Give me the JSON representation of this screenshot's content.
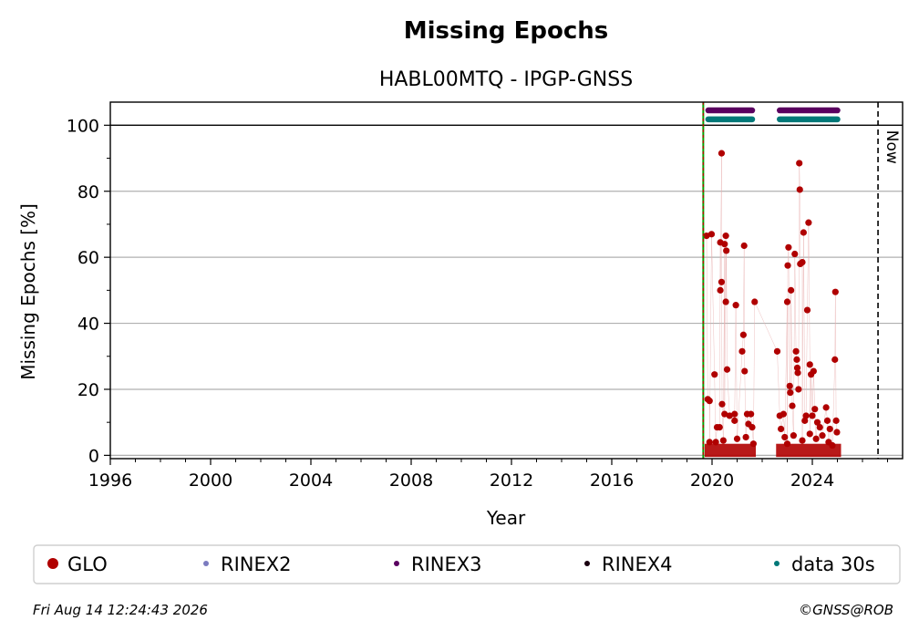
{
  "chart_data": {
    "type": "scatter",
    "title": "Missing Epochs",
    "subtitle": "HABL00MTQ - IPGP-GNSS",
    "xlabel": "Year",
    "ylabel": "Missing Epochs [%]",
    "xlim": [
      1996.0,
      2027.6
    ],
    "ylim": [
      -1.0,
      107.0
    ],
    "xticks": [
      1996,
      2000,
      2004,
      2008,
      2012,
      2016,
      2020,
      2024
    ],
    "yticks": [
      0,
      20,
      40,
      60,
      80,
      100
    ],
    "grid": "horizontal",
    "reference_line_y": 100,
    "start_line_x": 2019.65,
    "now_line": {
      "x": 2026.62,
      "label": "Now"
    },
    "series": [
      {
        "name": "GLO",
        "color": "#b00000",
        "points": [
          [
            2019.78,
            66.5
          ],
          [
            2019.83,
            17.0
          ],
          [
            2019.9,
            16.5
          ],
          [
            2019.98,
            67.0
          ],
          [
            2020.1,
            24.5
          ],
          [
            2020.2,
            8.5
          ],
          [
            2020.3,
            8.5
          ],
          [
            2020.38,
            91.5
          ],
          [
            2020.33,
            64.5
          ],
          [
            2020.5,
            64.0
          ],
          [
            2020.55,
            66.5
          ],
          [
            2020.57,
            62.0
          ],
          [
            2020.38,
            52.5
          ],
          [
            2020.33,
            50.0
          ],
          [
            2020.55,
            46.5
          ],
          [
            2020.4,
            15.5
          ],
          [
            2020.5,
            12.5
          ],
          [
            2020.6,
            26.0
          ],
          [
            2020.7,
            12.0
          ],
          [
            2020.95,
            45.5
          ],
          [
            2020.9,
            10.5
          ],
          [
            2020.9,
            12.5
          ],
          [
            2021.2,
            31.5
          ],
          [
            2021.25,
            36.5
          ],
          [
            2021.28,
            63.5
          ],
          [
            2021.3,
            25.5
          ],
          [
            2021.4,
            12.5
          ],
          [
            2021.45,
            9.5
          ],
          [
            2021.55,
            12.5
          ],
          [
            2021.6,
            8.5
          ],
          [
            2021.7,
            46.5
          ],
          [
            2019.9,
            4.0
          ],
          [
            2020.15,
            4.0
          ],
          [
            2020.45,
            4.5
          ],
          [
            2021.0,
            5.0
          ],
          [
            2021.35,
            5.5
          ],
          [
            2021.65,
            3.5
          ],
          [
            2022.6,
            31.5
          ],
          [
            2022.7,
            12.0
          ],
          [
            2022.75,
            8.0
          ],
          [
            2022.85,
            12.5
          ],
          [
            2023.0,
            46.5
          ],
          [
            2023.02,
            57.5
          ],
          [
            2023.05,
            63.0
          ],
          [
            2023.1,
            21.0
          ],
          [
            2023.12,
            19.0
          ],
          [
            2023.15,
            50.0
          ],
          [
            2023.2,
            15.0
          ],
          [
            2023.3,
            61.0
          ],
          [
            2023.35,
            31.5
          ],
          [
            2023.38,
            29.0
          ],
          [
            2023.4,
            26.5
          ],
          [
            2023.42,
            25.0
          ],
          [
            2023.45,
            20.0
          ],
          [
            2023.48,
            88.5
          ],
          [
            2023.5,
            80.5
          ],
          [
            2023.52,
            58.0
          ],
          [
            2023.6,
            58.5
          ],
          [
            2023.65,
            67.5
          ],
          [
            2023.7,
            10.5
          ],
          [
            2023.75,
            12.0
          ],
          [
            2023.8,
            44.0
          ],
          [
            2023.85,
            70.5
          ],
          [
            2023.9,
            27.5
          ],
          [
            2023.95,
            24.5
          ],
          [
            2024.0,
            12.0
          ],
          [
            2024.05,
            25.5
          ],
          [
            2024.1,
            14.0
          ],
          [
            2024.2,
            10.0
          ],
          [
            2024.3,
            8.5
          ],
          [
            2024.55,
            14.5
          ],
          [
            2024.6,
            10.5
          ],
          [
            2024.7,
            8.0
          ],
          [
            2024.9,
            29.0
          ],
          [
            2024.92,
            49.5
          ],
          [
            2024.95,
            10.5
          ],
          [
            2024.98,
            7.0
          ],
          [
            2022.9,
            5.5
          ],
          [
            2023.0,
            3.5
          ],
          [
            2023.25,
            6.0
          ],
          [
            2023.6,
            4.5
          ],
          [
            2023.9,
            6.5
          ],
          [
            2024.15,
            5.0
          ],
          [
            2024.4,
            6.0
          ],
          [
            2024.65,
            4.0
          ],
          [
            2024.8,
            3.0
          ]
        ]
      },
      {
        "name": "RINEX2",
        "color": "#7b7bbf",
        "points": []
      },
      {
        "name": "RINEX3",
        "color": "#5a0060",
        "band_y": 104.5,
        "ranges": [
          [
            2019.85,
            2021.6
          ],
          [
            2022.7,
            2025.0
          ]
        ]
      },
      {
        "name": "RINEX4",
        "color": "#1a0010",
        "points": []
      },
      {
        "name": "data 30s",
        "color": "#007878",
        "band_y": 101.8,
        "ranges": [
          [
            2019.85,
            2021.6
          ],
          [
            2022.7,
            2025.0
          ]
        ]
      }
    ],
    "legend_position": "bottom"
  },
  "footer": {
    "timestamp": "Fri Aug 14 12:24:43 2026",
    "credit": "©GNSS@ROB"
  }
}
